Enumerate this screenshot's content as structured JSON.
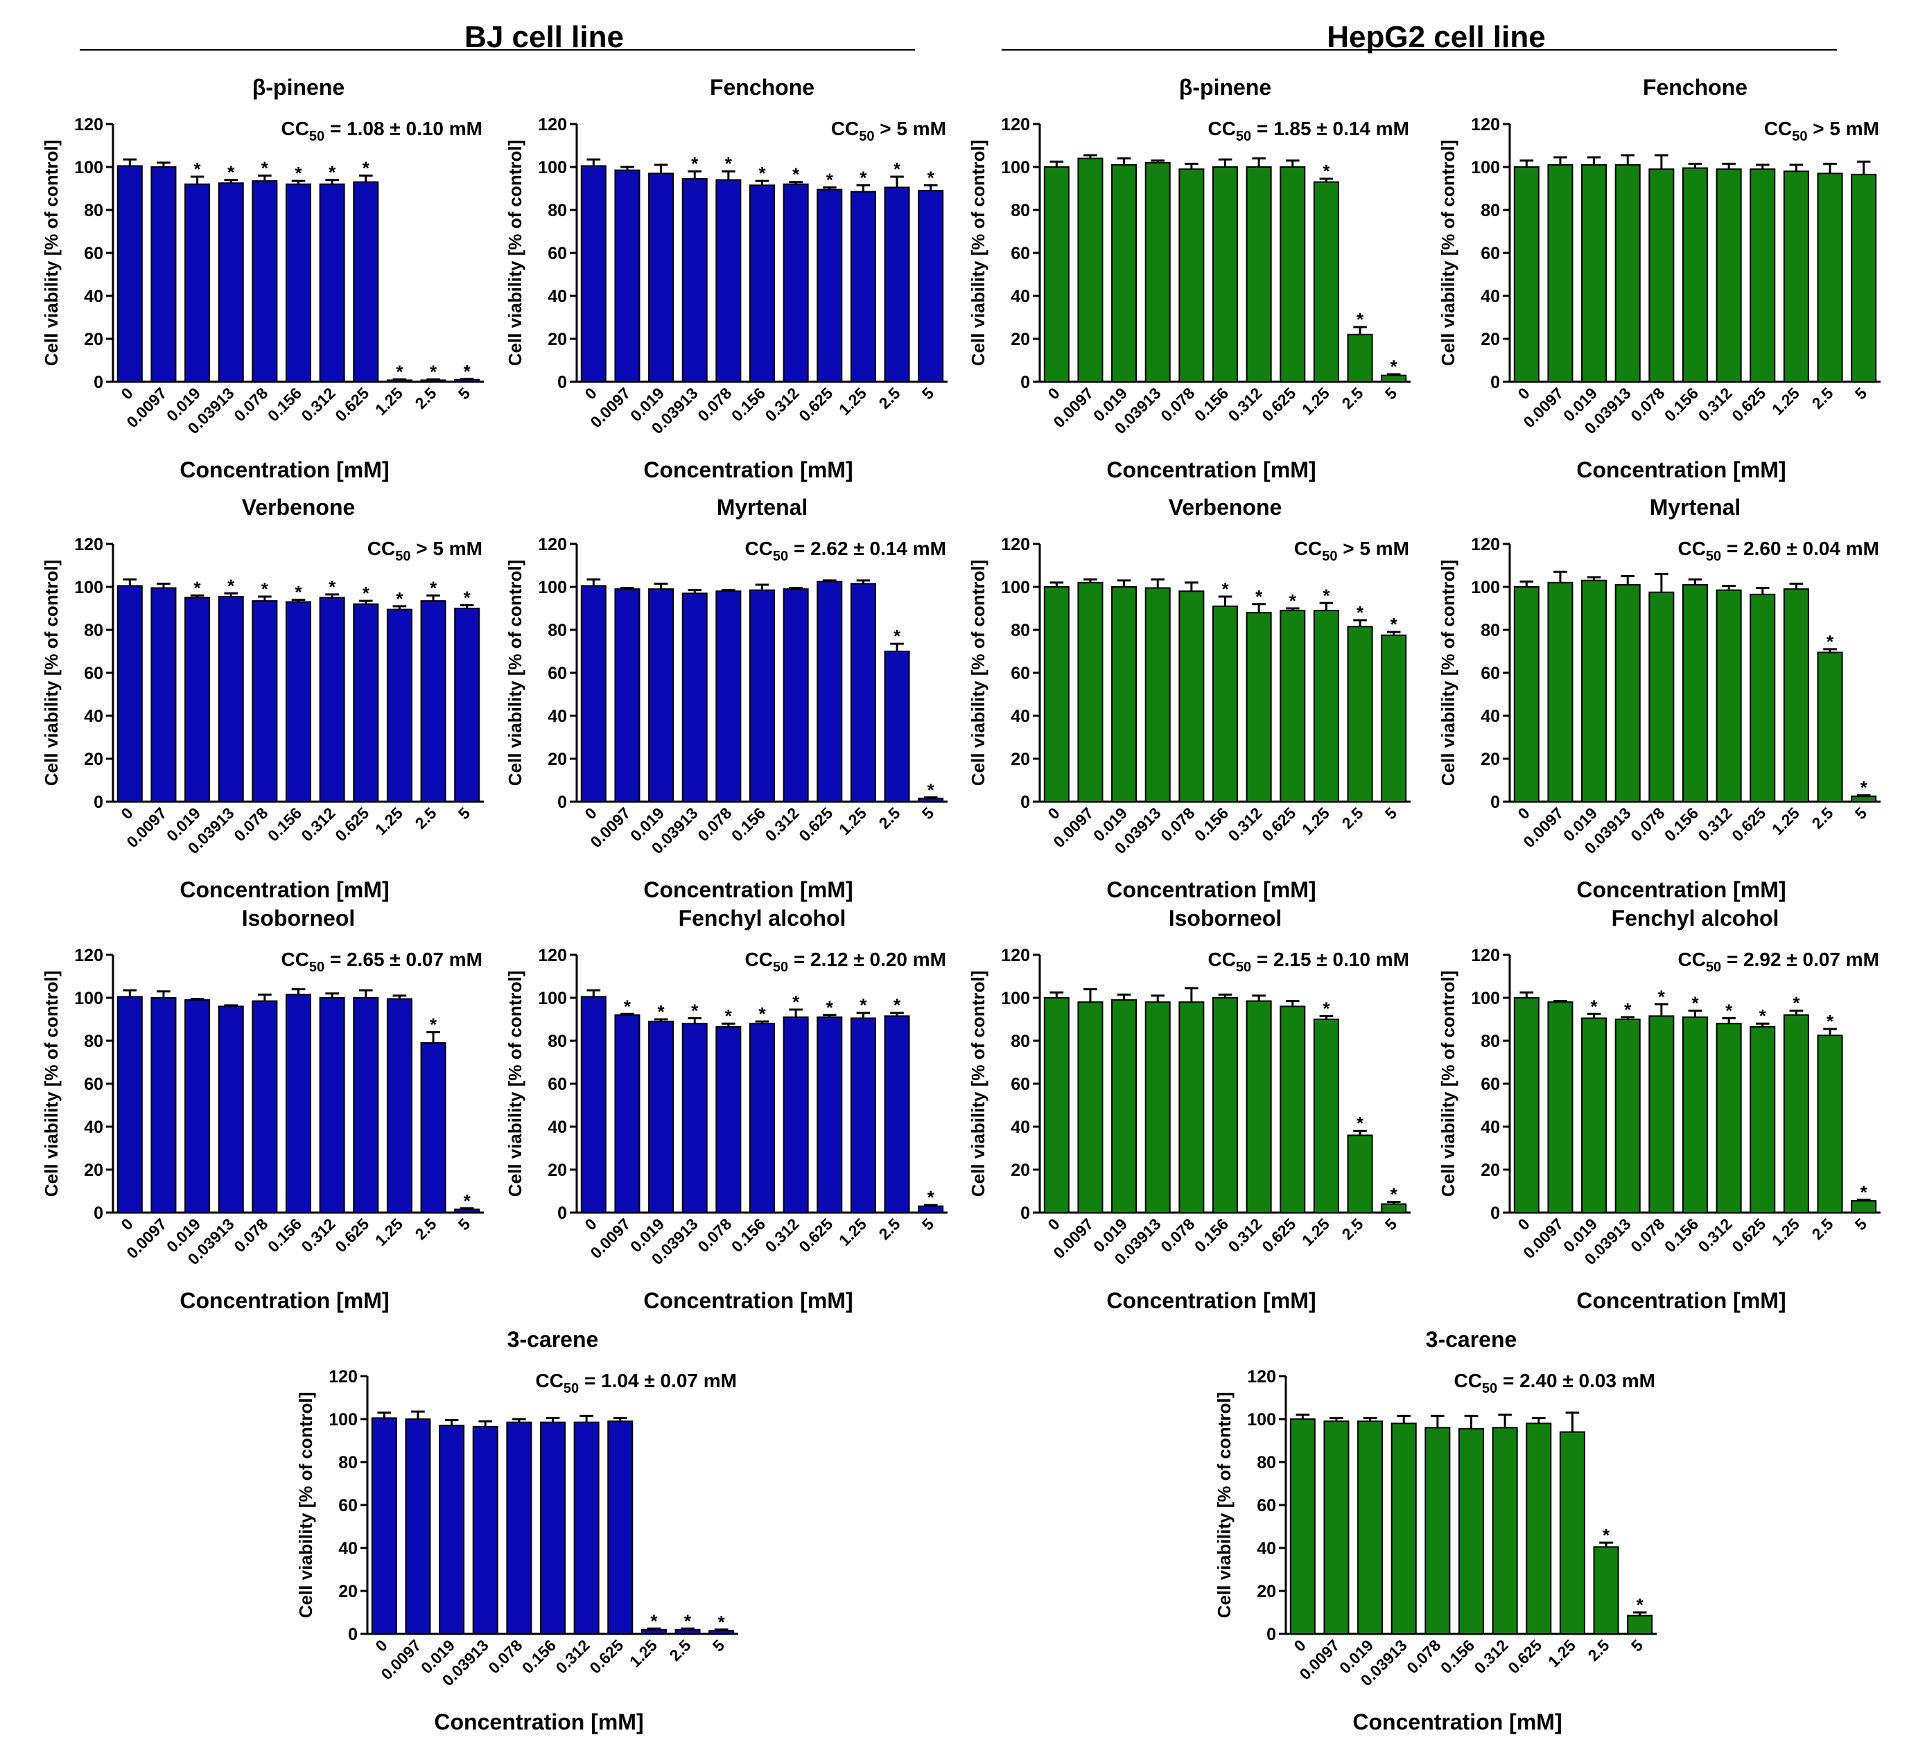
{
  "headers": {
    "bj": "BJ cell line",
    "hepg2": "HepG2 cell line"
  },
  "colors": {
    "bj": "#0a0ab4",
    "hepg2": "#12800f",
    "stroke": "#000000"
  },
  "common": {
    "categories": [
      "0",
      "0.0097",
      "0.019",
      "0.03913",
      "0.078",
      "0.156",
      "0.312",
      "0.625",
      "1.25",
      "2.5",
      "5"
    ],
    "xlabel": "Concentration [mM]",
    "ylabel": "Cell viability [% of control]",
    "yticks": [
      "0",
      "20",
      "40",
      "60",
      "80",
      "100",
      "120"
    ],
    "ylim": [
      0,
      120
    ],
    "sig_marker": "*"
  },
  "chart_data": [
    {
      "type": "bar",
      "panel": "BJ cell line",
      "title": "β-pinene",
      "cc50": {
        "pre": "CC",
        "sub": "50",
        "post": " = 1.08 ± 0.10 mM"
      },
      "categories": [
        "0",
        "0.0097",
        "0.019",
        "0.03913",
        "0.078",
        "0.156",
        "0.312",
        "0.625",
        "1.25",
        "2.5",
        "5"
      ],
      "values": [
        100.5,
        100,
        92,
        92.5,
        93.5,
        92,
        92,
        93,
        0.8,
        0.8,
        1
      ],
      "errors": [
        3,
        2,
        3.5,
        1.5,
        2.5,
        1.5,
        2,
        3,
        0.3,
        0.3,
        0.3
      ],
      "sig": [
        false,
        false,
        true,
        true,
        true,
        true,
        true,
        true,
        true,
        true,
        true
      ],
      "xlabel": "Concentration [mM]",
      "ylabel": "Cell viability [% of control]",
      "ylim": [
        0,
        120
      ]
    },
    {
      "type": "bar",
      "panel": "BJ cell line",
      "title": "Fenchone",
      "cc50": {
        "pre": "CC",
        "sub": "50",
        "post": " > 5 mM"
      },
      "categories": [
        "0",
        "0.0097",
        "0.019",
        "0.03913",
        "0.078",
        "0.156",
        "0.312",
        "0.625",
        "1.25",
        "2.5",
        "5"
      ],
      "values": [
        100.5,
        98.5,
        97,
        94.5,
        94,
        91.5,
        92,
        89.5,
        88.5,
        90.5,
        89
      ],
      "errors": [
        3,
        1.5,
        4,
        3.5,
        4,
        2,
        1,
        1,
        3,
        5,
        2.5
      ],
      "sig": [
        false,
        false,
        false,
        true,
        true,
        true,
        true,
        true,
        true,
        true,
        true
      ],
      "xlabel": "Concentration [mM]",
      "ylabel": "Cell viability [% of control]",
      "ylim": [
        0,
        120
      ]
    },
    {
      "type": "bar",
      "panel": "HepG2 cell line",
      "title": "β-pinene",
      "cc50": {
        "pre": "CC",
        "sub": "50",
        "post": " = 1.85 ± 0.14 mM"
      },
      "categories": [
        "0",
        "0.0097",
        "0.019",
        "0.03913",
        "0.078",
        "0.156",
        "0.312",
        "0.625",
        "1.25",
        "2.5",
        "5"
      ],
      "values": [
        100,
        104,
        101,
        102,
        99,
        100,
        100,
        100,
        93,
        22,
        3
      ],
      "errors": [
        2.5,
        1.5,
        3,
        1,
        2.5,
        3.5,
        4,
        3,
        1.5,
        3.5,
        0.5
      ],
      "sig": [
        false,
        false,
        false,
        false,
        false,
        false,
        false,
        false,
        true,
        true,
        true
      ],
      "xlabel": "Concentration [mM]",
      "ylabel": "Cell viability [% of control]",
      "ylim": [
        0,
        120
      ]
    },
    {
      "type": "bar",
      "panel": "HepG2 cell line",
      "title": "Fenchone",
      "cc50": {
        "pre": "CC",
        "sub": "50",
        "post": " > 5 mM"
      },
      "categories": [
        "0",
        "0.0097",
        "0.019",
        "0.03913",
        "0.078",
        "0.156",
        "0.312",
        "0.625",
        "1.25",
        "2.5",
        "5"
      ],
      "values": [
        100,
        101,
        101,
        101,
        99,
        99.5,
        99,
        99,
        98,
        97,
        96.5
      ],
      "errors": [
        3,
        3.5,
        3.5,
        4.5,
        6.5,
        2,
        2.5,
        2,
        3,
        4.5,
        6
      ],
      "sig": [
        false,
        false,
        false,
        false,
        false,
        false,
        false,
        false,
        false,
        false,
        false
      ],
      "xlabel": "Concentration [mM]",
      "ylabel": "Cell viability [% of control]",
      "ylim": [
        0,
        120
      ]
    },
    {
      "type": "bar",
      "panel": "BJ cell line",
      "title": "Verbenone",
      "cc50": {
        "pre": "CC",
        "sub": "50",
        "post": " > 5 mM"
      },
      "categories": [
        "0",
        "0.0097",
        "0.019",
        "0.03913",
        "0.078",
        "0.156",
        "0.312",
        "0.625",
        "1.25",
        "2.5",
        "5"
      ],
      "values": [
        100.5,
        99.5,
        95,
        95.5,
        93.5,
        93,
        95,
        92,
        89.5,
        93.5,
        90
      ],
      "errors": [
        3,
        2,
        1,
        1.5,
        2,
        1,
        1.5,
        1.5,
        1.5,
        2.5,
        1.5
      ],
      "sig": [
        false,
        false,
        true,
        true,
        true,
        true,
        true,
        true,
        true,
        true,
        true
      ],
      "xlabel": "Concentration [mM]",
      "ylabel": "Cell viability [% of control]",
      "ylim": [
        0,
        120
      ]
    },
    {
      "type": "bar",
      "panel": "BJ cell line",
      "title": "Myrtenal",
      "cc50": {
        "pre": "CC",
        "sub": "50",
        "post": " = 2.62 ± 0.14 mM"
      },
      "categories": [
        "0",
        "0.0097",
        "0.019",
        "0.03913",
        "0.078",
        "0.156",
        "0.312",
        "0.625",
        "1.25",
        "2.5",
        "5"
      ],
      "values": [
        100.5,
        99,
        99,
        97,
        98,
        98.5,
        99,
        102.5,
        101.5,
        70,
        1.5
      ],
      "errors": [
        3,
        0.5,
        2.5,
        1.5,
        0.5,
        2.5,
        0.5,
        0.5,
        1.5,
        3.5,
        0.5
      ],
      "sig": [
        false,
        false,
        false,
        false,
        false,
        false,
        false,
        false,
        false,
        true,
        true
      ],
      "xlabel": "Concentration [mM]",
      "ylabel": "Cell viability [% of control]",
      "ylim": [
        0,
        120
      ]
    },
    {
      "type": "bar",
      "panel": "HepG2 cell line",
      "title": "Verbenone",
      "cc50": {
        "pre": "CC",
        "sub": "50",
        "post": " > 5 mM"
      },
      "categories": [
        "0",
        "0.0097",
        "0.019",
        "0.03913",
        "0.078",
        "0.156",
        "0.312",
        "0.625",
        "1.25",
        "2.5",
        "5"
      ],
      "values": [
        100,
        102,
        100,
        99.5,
        98,
        91,
        88,
        89,
        89,
        81.5,
        77.5
      ],
      "errors": [
        2,
        1.5,
        3,
        4,
        4,
        4.5,
        4,
        1,
        3.5,
        3,
        1.5
      ],
      "sig": [
        false,
        false,
        false,
        false,
        false,
        true,
        true,
        true,
        true,
        true,
        true
      ],
      "xlabel": "Concentration [mM]",
      "ylabel": "Cell viability [% of control]",
      "ylim": [
        0,
        120
      ]
    },
    {
      "type": "bar",
      "panel": "HepG2 cell line",
      "title": "Myrtenal",
      "cc50": {
        "pre": "CC",
        "sub": "50",
        "post": " = 2.60 ± 0.04 mM"
      },
      "categories": [
        "0",
        "0.0097",
        "0.019",
        "0.03913",
        "0.078",
        "0.156",
        "0.312",
        "0.625",
        "1.25",
        "2.5",
        "5"
      ],
      "values": [
        100,
        102,
        103,
        101,
        97.5,
        101,
        98.5,
        96.5,
        99,
        69.5,
        2.5
      ],
      "errors": [
        2.5,
        5,
        1.5,
        4,
        8.5,
        2.5,
        2,
        3,
        2.5,
        1.5,
        0.5
      ],
      "sig": [
        false,
        false,
        false,
        false,
        false,
        false,
        false,
        false,
        false,
        true,
        true
      ],
      "xlabel": "Concentration [mM]",
      "ylabel": "Cell viability [% of control]",
      "ylim": [
        0,
        120
      ]
    },
    {
      "type": "bar",
      "panel": "BJ cell line",
      "title": "Isoborneol",
      "cc50": {
        "pre": "CC",
        "sub": "50",
        "post": " = 2.65 ± 0.07 mM"
      },
      "categories": [
        "0",
        "0.0097",
        "0.019",
        "0.03913",
        "0.078",
        "0.156",
        "0.312",
        "0.625",
        "1.25",
        "2.5",
        "5"
      ],
      "values": [
        100.5,
        100,
        99,
        96,
        98.5,
        101.5,
        100,
        100,
        99.5,
        79,
        1.5
      ],
      "errors": [
        3,
        3,
        0.5,
        0.5,
        3,
        2.5,
        2,
        3.5,
        1.5,
        5,
        0.5
      ],
      "sig": [
        false,
        false,
        false,
        false,
        false,
        false,
        false,
        false,
        false,
        true,
        true
      ],
      "xlabel": "Concentration [mM]",
      "ylabel": "Cell viability [% of control]",
      "ylim": [
        0,
        120
      ]
    },
    {
      "type": "bar",
      "panel": "BJ cell line",
      "title": "Fenchyl alcohol",
      "cc50": {
        "pre": "CC",
        "sub": "50",
        "post": " = 2.12 ± 0.20 mM"
      },
      "categories": [
        "0",
        "0.0097",
        "0.019",
        "0.03913",
        "0.078",
        "0.156",
        "0.312",
        "0.625",
        "1.25",
        "2.5",
        "5"
      ],
      "values": [
        100.5,
        92,
        89,
        88,
        86.5,
        88,
        91,
        91,
        90.5,
        91.5,
        3
      ],
      "errors": [
        3,
        0.5,
        1,
        2.5,
        1.5,
        1,
        3.5,
        1,
        2.5,
        1.5,
        0.5
      ],
      "sig": [
        false,
        true,
        true,
        true,
        true,
        true,
        true,
        true,
        true,
        true,
        true
      ],
      "xlabel": "Concentration [mM]",
      "ylabel": "Cell viability [% of control]",
      "ylim": [
        0,
        120
      ]
    },
    {
      "type": "bar",
      "panel": "HepG2 cell line",
      "title": "Isoborneol",
      "cc50": {
        "pre": "CC",
        "sub": "50",
        "post": " = 2.15 ± 0.10 mM"
      },
      "categories": [
        "0",
        "0.0097",
        "0.019",
        "0.03913",
        "0.078",
        "0.156",
        "0.312",
        "0.625",
        "1.25",
        "2.5",
        "5"
      ],
      "values": [
        100,
        98,
        99,
        98,
        98,
        100,
        98.5,
        96,
        90,
        36,
        4
      ],
      "errors": [
        2.5,
        6,
        2.5,
        3,
        6.5,
        1.5,
        2.5,
        2.5,
        1.5,
        2,
        1
      ],
      "sig": [
        false,
        false,
        false,
        false,
        false,
        false,
        false,
        false,
        true,
        true,
        true
      ],
      "xlabel": "Concentration [mM]",
      "ylabel": "Cell viability [% of control]",
      "ylim": [
        0,
        120
      ]
    },
    {
      "type": "bar",
      "panel": "HepG2 cell line",
      "title": "Fenchyl alcohol",
      "cc50": {
        "pre": "CC",
        "sub": "50",
        "post": " = 2.92 ± 0.07 mM"
      },
      "categories": [
        "0",
        "0.0097",
        "0.019",
        "0.03913",
        "0.078",
        "0.156",
        "0.312",
        "0.625",
        "1.25",
        "2.5",
        "5"
      ],
      "values": [
        100,
        98,
        90.5,
        90,
        91.5,
        91,
        88,
        86.5,
        92,
        82.5,
        5.5
      ],
      "errors": [
        2.5,
        0.5,
        2,
        1,
        5.5,
        3,
        2.5,
        1.5,
        2,
        3,
        0.5
      ],
      "sig": [
        false,
        false,
        true,
        true,
        true,
        true,
        true,
        true,
        true,
        true,
        true
      ],
      "xlabel": "Concentration [mM]",
      "ylabel": "Cell viability [% of control]",
      "ylim": [
        0,
        120
      ]
    },
    {
      "type": "bar",
      "panel": "BJ cell line",
      "title": "3-carene",
      "cc50": {
        "pre": "CC",
        "sub": "50",
        "post": " = 1.04 ± 0.07 mM"
      },
      "categories": [
        "0",
        "0.0097",
        "0.019",
        "0.03913",
        "0.078",
        "0.156",
        "0.312",
        "0.625",
        "1.25",
        "2.5",
        "5"
      ],
      "values": [
        100.5,
        100,
        97,
        96.5,
        98.5,
        98.5,
        98.5,
        99,
        2,
        2,
        1.5
      ],
      "errors": [
        2.5,
        3.5,
        2.5,
        2.5,
        1.5,
        2,
        3,
        1.5,
        0.5,
        0.5,
        0.5
      ],
      "sig": [
        false,
        false,
        false,
        false,
        false,
        false,
        false,
        false,
        true,
        true,
        true
      ],
      "xlabel": "Concentration [mM]",
      "ylabel": "Cell viability [% of control]",
      "ylim": [
        0,
        120
      ]
    },
    {
      "type": "bar",
      "panel": "HepG2 cell line",
      "title": "3-carene",
      "cc50": {
        "pre": "CC",
        "sub": "50",
        "post": " = 2.40 ± 0.03 mM"
      },
      "categories": [
        "0",
        "0.0097",
        "0.019",
        "0.03913",
        "0.078",
        "0.156",
        "0.312",
        "0.625",
        "1.25",
        "2.5",
        "5"
      ],
      "values": [
        100,
        99,
        99,
        98,
        96,
        95.5,
        96,
        98,
        94,
        40.5,
        8.5
      ],
      "errors": [
        2,
        1.5,
        1.5,
        3.5,
        5.5,
        6,
        6,
        2.5,
        9,
        2,
        1.5
      ],
      "sig": [
        false,
        false,
        false,
        false,
        false,
        false,
        false,
        false,
        false,
        true,
        true
      ],
      "xlabel": "Concentration [mM]",
      "ylabel": "Cell viability [% of control]",
      "ylim": [
        0,
        120
      ]
    }
  ]
}
